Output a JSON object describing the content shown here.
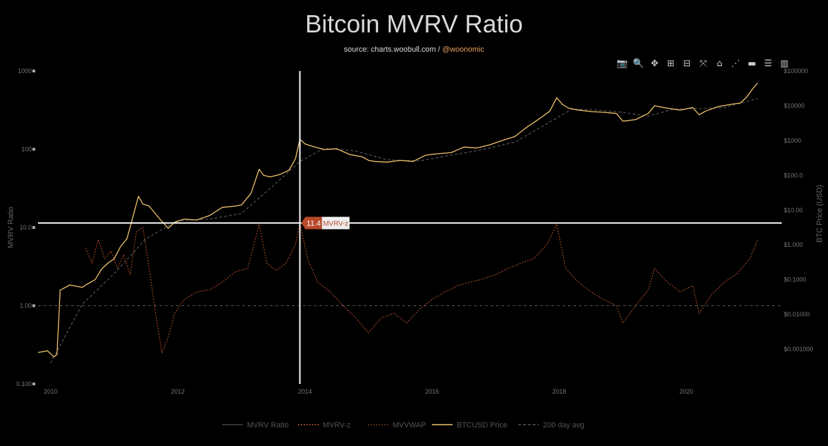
{
  "header": {
    "title": "Bitcoin MVRV Ratio",
    "source_prefix": "source: charts.woobull.com / ",
    "source_handle": "@woonomic"
  },
  "toolbar": [
    {
      "name": "camera-icon",
      "glyph": "📷"
    },
    {
      "name": "zoom-icon",
      "glyph": "🔍"
    },
    {
      "name": "pan-icon",
      "glyph": "✥"
    },
    {
      "name": "zoom-in-icon",
      "glyph": "⊞"
    },
    {
      "name": "zoom-out-icon",
      "glyph": "⊟"
    },
    {
      "name": "autoscale-icon",
      "glyph": "⤧"
    },
    {
      "name": "home-icon",
      "glyph": "⌂"
    },
    {
      "name": "spike-lines-icon",
      "glyph": "⋰"
    },
    {
      "name": "hover-closest-icon",
      "glyph": "▬"
    },
    {
      "name": "hover-compare-icon",
      "glyph": "☰"
    },
    {
      "name": "plotly-logo-icon",
      "glyph": "▥"
    }
  ],
  "hover": {
    "value": "11.4",
    "label": "MVRV-z",
    "x_year": 2013.92,
    "y_ratio": 11.4
  },
  "chart_data": {
    "type": "line",
    "title": "Bitcoin MVRV Ratio",
    "xlabel": "",
    "ylabel": "MVRV Ratio",
    "y2label": "BTC Price (USD)",
    "x_range": [
      2009.8,
      2021.5
    ],
    "xlim": [
      2009.8,
      2021.5
    ],
    "y_scale": "log",
    "ylim": [
      0.1,
      1000
    ],
    "y2_scale": "log",
    "y2lim": [
      0.0001,
      100000
    ],
    "x_ticks": [
      2010,
      2012,
      2014,
      2016,
      2018,
      2020
    ],
    "x_tick_labels": [
      "2010",
      "2012",
      "2014",
      "2016",
      "2018",
      "2020"
    ],
    "y_ticks": [
      0.1,
      1,
      10,
      100,
      1000
    ],
    "y_tick_labels": [
      "0.100",
      "1.00",
      "10.0",
      "100",
      "1000"
    ],
    "y2_ticks": [
      0.001,
      0.01,
      0.1,
      1,
      10,
      100,
      1000,
      10000,
      100000
    ],
    "y2_tick_labels": [
      "$0.001000",
      "$0.01000",
      "$0.1000",
      "$1.000",
      "$10.00",
      "$100.0",
      "$1000",
      "$10000",
      "$100000"
    ],
    "reference_line": 1,
    "legend_position": "bottom",
    "legend": [
      "MVRV Ratio",
      "MVRV-z",
      "MVVWAP",
      "BTCUSD Price",
      "200 day avg"
    ],
    "colors": {
      "price": "#f2c66d",
      "mvrvz": "#c0562e",
      "avg": "#555555",
      "mvrv": "#444444",
      "mvvwap": "#6b3a20",
      "crosshair": "#ffffff",
      "hover_box": "#b84a2a"
    },
    "series": [
      {
        "name": "BTCUSD Price",
        "axis": "y2",
        "x": [
          2009.8,
          2009.95,
          2010.05,
          2010.1,
          2010.15,
          2010.3,
          2010.5,
          2010.55,
          2010.7,
          2010.8,
          2010.9,
          2011.0,
          2011.1,
          2011.2,
          2011.3,
          2011.38,
          2011.45,
          2011.55,
          2011.7,
          2011.85,
          2011.95,
          2012.1,
          2012.3,
          2012.5,
          2012.7,
          2012.9,
          2013.0,
          2013.15,
          2013.28,
          2013.35,
          2013.45,
          2013.6,
          2013.75,
          2013.85,
          2013.92,
          2014.0,
          2014.1,
          2014.3,
          2014.5,
          2014.7,
          2014.9,
          2015.0,
          2015.1,
          2015.3,
          2015.5,
          2015.7,
          2015.9,
          2016.1,
          2016.3,
          2016.5,
          2016.7,
          2016.9,
          2017.1,
          2017.3,
          2017.5,
          2017.7,
          2017.85,
          2017.96,
          2018.05,
          2018.15,
          2018.3,
          2018.5,
          2018.7,
          2018.9,
          2019.0,
          2019.2,
          2019.4,
          2019.5,
          2019.7,
          2019.9,
          2020.1,
          2020.2,
          2020.3,
          2020.5,
          2020.7,
          2020.85,
          2020.95,
          2021.05,
          2021.12
        ],
        "values": [
          0.0008,
          0.0009,
          0.0006,
          0.0007,
          0.05,
          0.07,
          0.06,
          0.07,
          0.1,
          0.2,
          0.3,
          0.4,
          0.9,
          1.5,
          7,
          25,
          15,
          13,
          6,
          3,
          4.5,
          5.5,
          5.2,
          7,
          12,
          13,
          14,
          30,
          150,
          100,
          90,
          105,
          140,
          300,
          1100,
          800,
          700,
          550,
          580,
          400,
          340,
          270,
          250,
          240,
          270,
          250,
          380,
          420,
          450,
          650,
          610,
          750,
          1000,
          1300,
          2500,
          4400,
          7000,
          17000,
          11000,
          8500,
          7500,
          6800,
          6500,
          6000,
          3600,
          4000,
          6000,
          10000,
          8500,
          7500,
          8900,
          5500,
          7000,
          9500,
          11000,
          12000,
          18000,
          32000,
          45000
        ]
      },
      {
        "name": "MVRV-z",
        "axis": "y",
        "x": [
          2010.55,
          2010.65,
          2010.75,
          2010.85,
          2010.95,
          2011.05,
          2011.15,
          2011.25,
          2011.35,
          2011.45,
          2011.55,
          2011.65,
          2011.75,
          2011.85,
          2011.95,
          2012.1,
          2012.3,
          2012.5,
          2012.7,
          2012.9,
          2013.1,
          2013.28,
          2013.4,
          2013.55,
          2013.7,
          2013.85,
          2013.92,
          2014.05,
          2014.2,
          2014.4,
          2014.6,
          2014.8,
          2015.0,
          2015.2,
          2015.4,
          2015.6,
          2015.8,
          2016.0,
          2016.2,
          2016.4,
          2016.6,
          2016.8,
          2017.0,
          2017.2,
          2017.4,
          2017.6,
          2017.8,
          2017.96,
          2018.1,
          2018.3,
          2018.5,
          2018.7,
          2018.9,
          2019.0,
          2019.2,
          2019.4,
          2019.5,
          2019.7,
          2019.9,
          2020.1,
          2020.2,
          2020.4,
          2020.6,
          2020.8,
          2021.0,
          2021.12
        ],
        "values": [
          5.5,
          3.5,
          7.0,
          4.0,
          5.0,
          3.0,
          4.5,
          2.5,
          9.0,
          10.0,
          3.0,
          0.8,
          0.25,
          0.4,
          0.8,
          1.2,
          1.5,
          1.6,
          2.0,
          2.7,
          3.0,
          11.0,
          3.5,
          2.8,
          3.5,
          6.0,
          11.4,
          3.8,
          2.0,
          1.5,
          1.0,
          0.7,
          0.45,
          0.7,
          0.8,
          0.6,
          0.9,
          1.2,
          1.5,
          1.8,
          2.0,
          2.2,
          2.5,
          3.0,
          3.5,
          4.0,
          6.0,
          11.0,
          3.0,
          2.0,
          1.5,
          1.2,
          1.0,
          0.6,
          1.0,
          1.6,
          3.0,
          2.0,
          1.5,
          1.8,
          0.8,
          1.4,
          2.0,
          2.6,
          4.0,
          7.0
        ]
      },
      {
        "name": "200 day avg",
        "axis": "y2",
        "x": [
          2010.0,
          2010.5,
          2011.0,
          2011.5,
          2012.0,
          2012.5,
          2013.0,
          2013.5,
          2013.92,
          2014.3,
          2014.8,
          2015.3,
          2015.8,
          2016.3,
          2016.8,
          2017.3,
          2017.8,
          2018.2,
          2018.6,
          2019.0,
          2019.4,
          2019.8,
          2020.2,
          2020.6,
          2021.12
        ],
        "values": [
          0.0004,
          0.02,
          0.15,
          1.5,
          5,
          5.5,
          8,
          50,
          250,
          600,
          500,
          280,
          260,
          380,
          550,
          900,
          3000,
          8000,
          7500,
          6500,
          5000,
          8000,
          8300,
          9000,
          16000
        ]
      }
    ]
  },
  "legend": {
    "items": [
      {
        "label": "MVRV Ratio",
        "style": "solid",
        "color": "#444444"
      },
      {
        "label": "MVRV-z",
        "style": "dot",
        "color": "#c0562e"
      },
      {
        "label": "MVVWAP",
        "style": "dot",
        "color": "#6b3a20"
      },
      {
        "label": "BTCUSD Price",
        "style": "solid",
        "color": "#f2c66d"
      },
      {
        "label": "200 day avg",
        "style": "dash",
        "color": "#555555"
      }
    ]
  }
}
